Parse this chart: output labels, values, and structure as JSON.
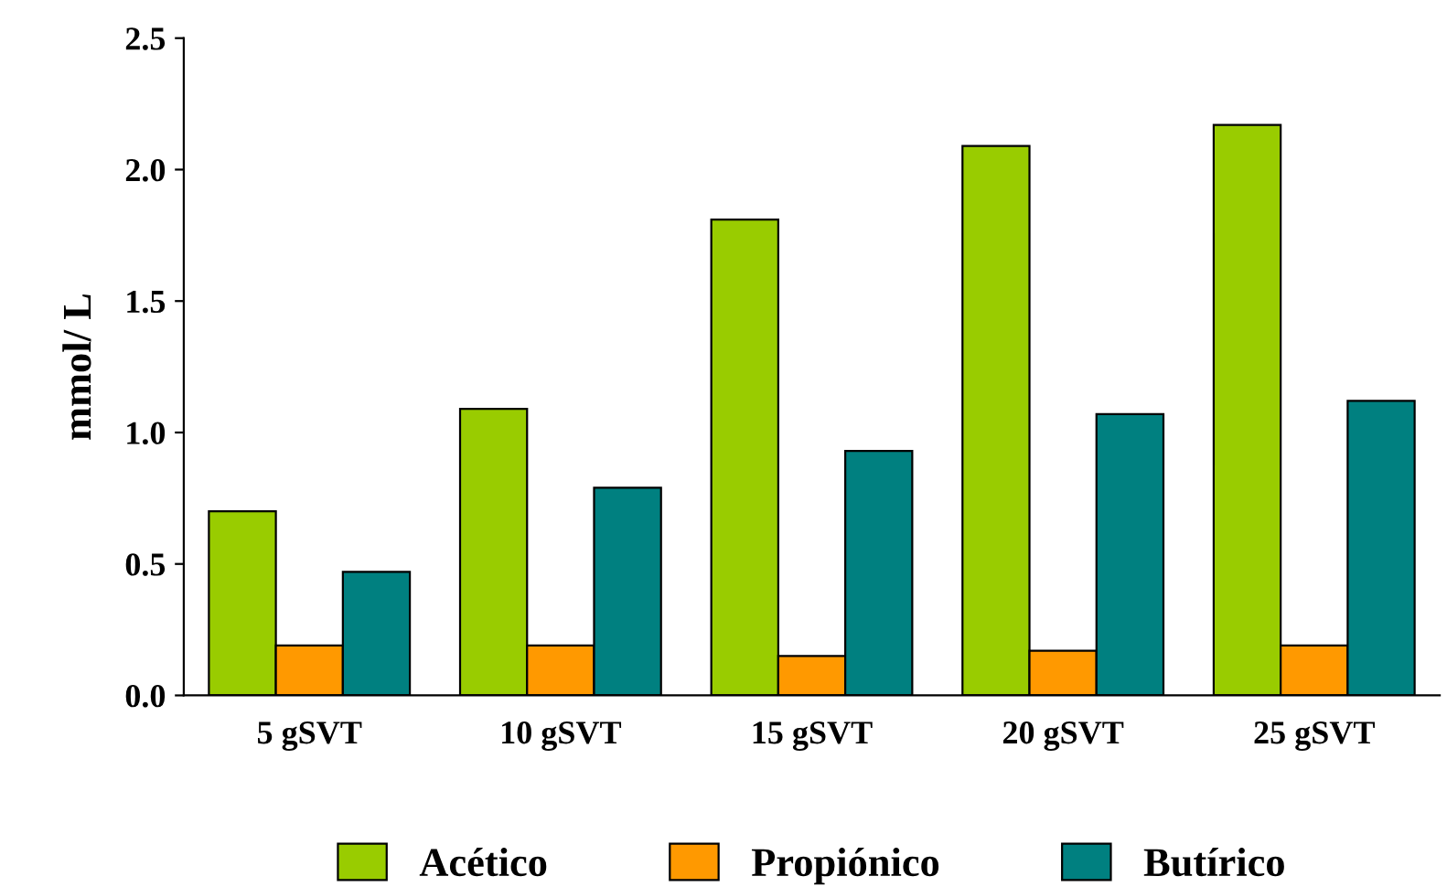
{
  "chart_data": {
    "type": "bar",
    "ylabel": "mmol/ L",
    "categories": [
      "5 gSVT",
      "10 gSVT",
      "15 gSVT",
      "20 gSVT",
      "25 gSVT"
    ],
    "series": [
      {
        "name": "Acético",
        "color": "#99cc00",
        "values": [
          0.7,
          1.09,
          1.81,
          2.09,
          2.17
        ]
      },
      {
        "name": "Propiónico",
        "color": "#ff9900",
        "values": [
          0.19,
          0.19,
          0.15,
          0.17,
          0.19
        ]
      },
      {
        "name": "Butírico",
        "color": "#008080",
        "values": [
          0.47,
          0.79,
          0.93,
          1.07,
          1.12
        ]
      }
    ],
    "ylim": [
      0,
      2.5
    ],
    "yticks": [
      {
        "value": 0,
        "label": "0.0"
      },
      {
        "value": 0.5,
        "label": "0.5"
      },
      {
        "value": 1,
        "label": "1.0"
      },
      {
        "value": 1.5,
        "label": "1.5"
      },
      {
        "value": 2,
        "label": "2.0"
      },
      {
        "value": 2.5,
        "label": "2.5"
      }
    ],
    "grid": false,
    "legend": "bottom"
  }
}
